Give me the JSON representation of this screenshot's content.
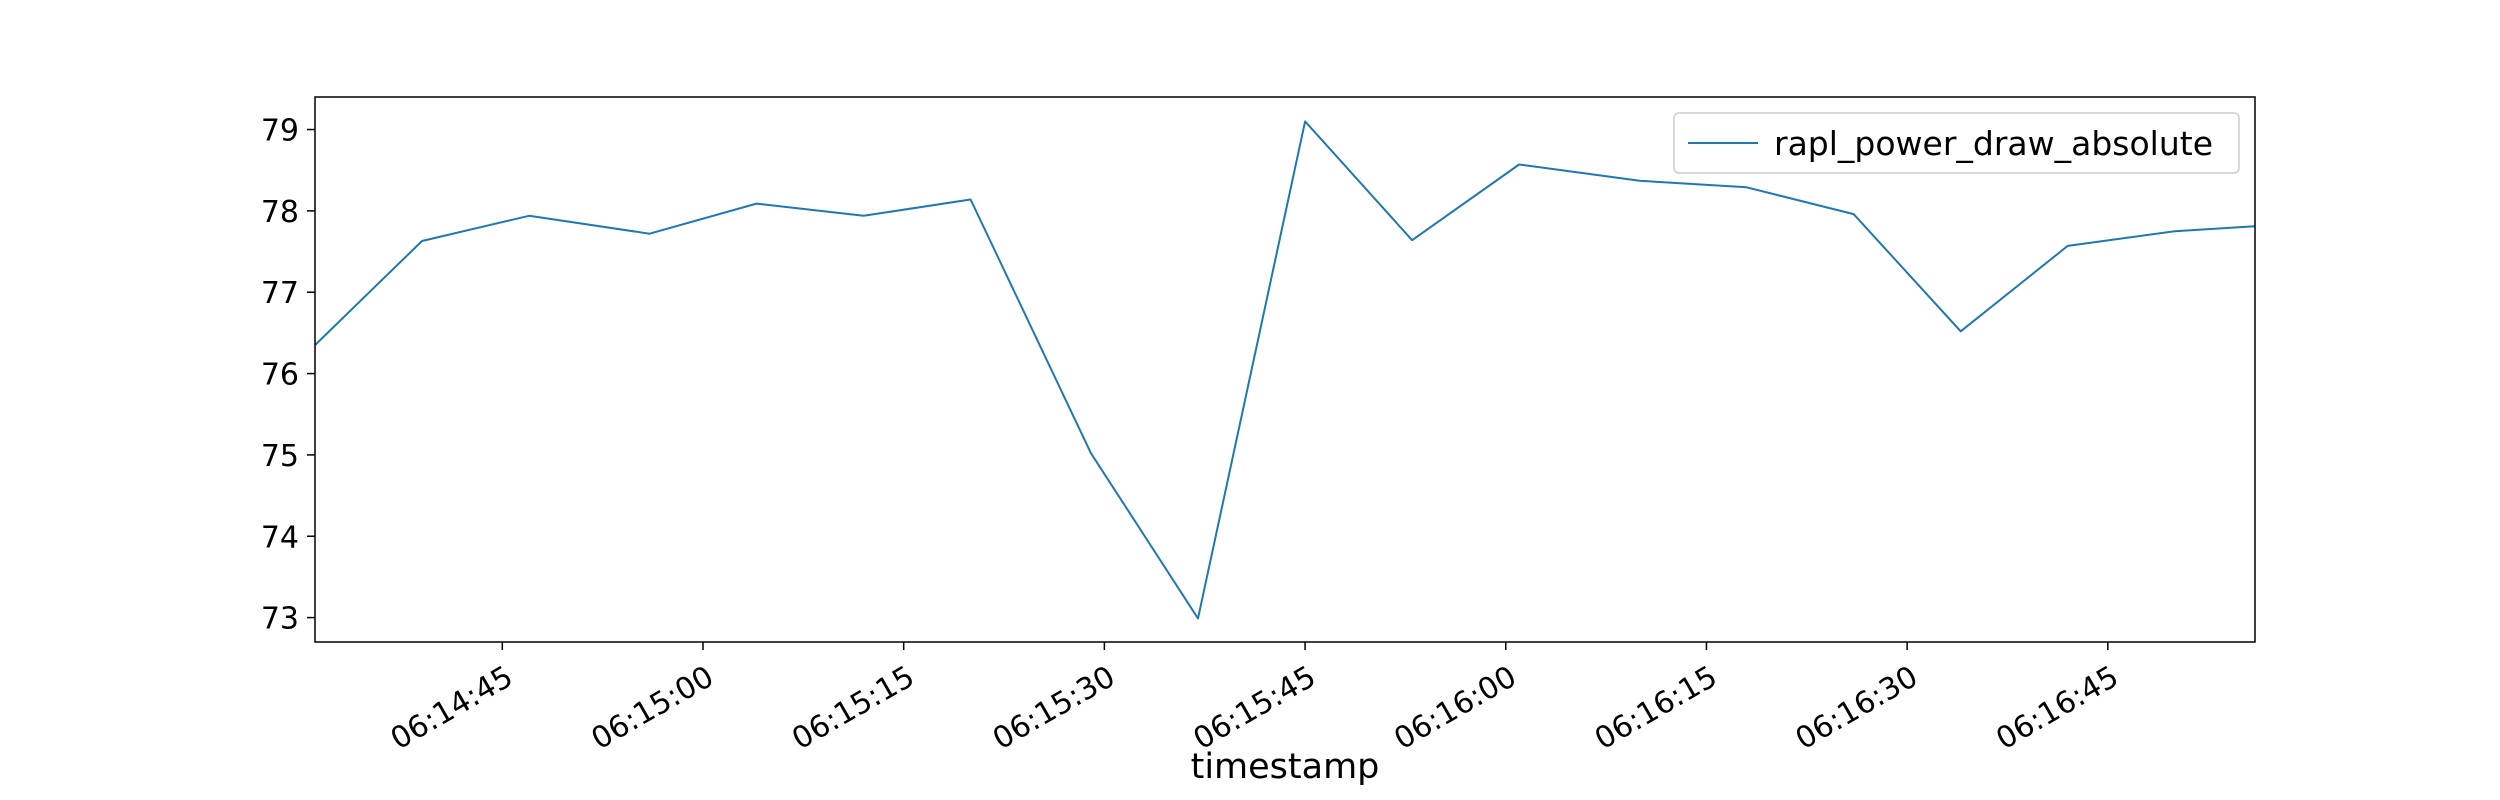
{
  "chart_data": {
    "type": "line",
    "xlabel": "timestamp",
    "ylabel": "",
    "xlim": [
      "06:14:31",
      "06:16:56"
    ],
    "ylim": [
      72.7,
      79.4
    ],
    "x_ticks": [
      "06:14:45",
      "06:15:00",
      "06:15:15",
      "06:15:30",
      "06:15:45",
      "06:16:00",
      "06:16:15",
      "06:16:30",
      "06:16:45"
    ],
    "y_ticks": [
      73,
      74,
      75,
      76,
      77,
      78,
      79
    ],
    "grid": false,
    "legend_position": "top-right",
    "series": [
      {
        "name": "rapl_power_draw_absolute",
        "color": "#1f77b4",
        "x": [
          "06:14:31",
          "06:14:39",
          "06:14:47",
          "06:14:56",
          "06:15:04",
          "06:15:12",
          "06:15:20",
          "06:15:29",
          "06:15:37",
          "06:15:45",
          "06:15:53",
          "06:16:01",
          "06:16:10",
          "06:16:18",
          "06:16:26",
          "06:16:34",
          "06:16:42",
          "06:16:50",
          "06:16:56"
        ],
        "values": [
          76.35,
          77.63,
          77.94,
          77.72,
          78.09,
          77.94,
          78.14,
          75.02,
          72.99,
          79.1,
          77.64,
          78.57,
          78.37,
          78.29,
          77.96,
          76.52,
          77.57,
          77.75,
          77.81
        ]
      }
    ]
  }
}
